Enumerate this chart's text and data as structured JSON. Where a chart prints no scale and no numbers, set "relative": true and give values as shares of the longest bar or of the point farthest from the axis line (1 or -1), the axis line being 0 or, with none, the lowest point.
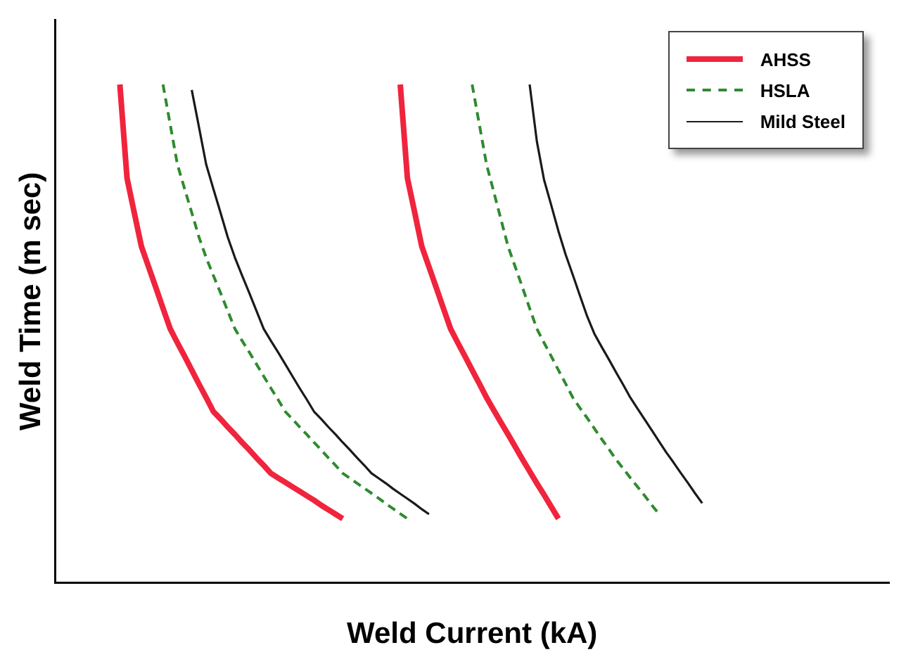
{
  "chart_data": {
    "type": "line",
    "relative": true,
    "xlabel": "Weld Current (kA)",
    "ylabel": "Weld Time (m sec)",
    "legend": "top right",
    "grid": false,
    "marker": "none",
    "categories": [
      null,
      null,
      null,
      null,
      null,
      null,
      null,
      null,
      null,
      null,
      null,
      null,
      null,
      null,
      null,
      null,
      null,
      null,
      null,
      null,
      null,
      null,
      null,
      null,
      null,
      null,
      null,
      null,
      null,
      null,
      null,
      null,
      null,
      null,
      null,
      null,
      null,
      null,
      null,
      null,
      null,
      null,
      null,
      null,
      null,
      null,
      null,
      null,
      null,
      null,
      null,
      null,
      null,
      null,
      null,
      null,
      null,
      null,
      null,
      null,
      null,
      null,
      null,
      null,
      null,
      null,
      null,
      null,
      null,
      null,
      null,
      null,
      null,
      null,
      null,
      null,
      null,
      null,
      null,
      null,
      null,
      null,
      null,
      null,
      null,
      null,
      null,
      null,
      null,
      null,
      null,
      null,
      null,
      null,
      null,
      null,
      null,
      null,
      null,
      null,
      null,
      null,
      null,
      null,
      null,
      null,
      null,
      null,
      null,
      null,
      null,
      null,
      null,
      null,
      null,
      null,
      null
    ],
    "series": [
      {
        "name": "AHSS",
        "color": "#f0243c",
        "line_style": "solid",
        "values": [
          null,
          null,
          null,
          null,
          null,
          null,
          null,
          null,
          null,
          1,
          0.812,
          0.743,
          0.675,
          0.634,
          0.593,
          0.551,
          0.51,
          0.482,
          0.455,
          0.427,
          0.399,
          0.372,
          0.344,
          0.329,
          0.313,
          0.298,
          0.282,
          0.267,
          0.251,
          0.236,
          0.22,
          0.211,
          0.202,
          0.193,
          0.184,
          0.175,
          0.166,
          0.156,
          0.147,
          0.138,
          0.129,
          null,
          null,
          null,
          null,
          null,
          null,
          null,
          null,
          null,
          null,
          null,
          null,
          null,
          null,
          null,
          null,
          null,
          null,
          null,
          null,
          null,
          null,
          null,
          null,
          null,
          null,
          null,
          null,
          null,
          null,
          null,
          null,
          null,
          null,
          null,
          null,
          null,
          null,
          null,
          null,
          null,
          null,
          null,
          null,
          null,
          null,
          null,
          null,
          null,
          null,
          null,
          null,
          null,
          null,
          null,
          null,
          null,
          null,
          null,
          null,
          null,
          null,
          null,
          null,
          null,
          null,
          null,
          null,
          null,
          null,
          null,
          null,
          null,
          null,
          null,
          null
        ]
      },
      {
        "name": "HSLA",
        "color": "#2e8b2e",
        "line_style": "dashed",
        "values": [
          null,
          null,
          null,
          null,
          null,
          null,
          null,
          null,
          null,
          null,
          null,
          null,
          null,
          null,
          null,
          1,
          0.92,
          0.84,
          0.791,
          0.743,
          0.694,
          0.653,
          0.617,
          0.582,
          0.546,
          0.51,
          0.486,
          0.463,
          0.439,
          0.415,
          0.391,
          0.368,
          0.344,
          0.329,
          0.313,
          0.298,
          0.282,
          0.267,
          0.251,
          0.236,
          0.22,
          0.21,
          0.2,
          0.19,
          0.18,
          0.17,
          0.159,
          0.149,
          0.139,
          0.129,
          null,
          null,
          null,
          null,
          null,
          null,
          null,
          null,
          null,
          null,
          null,
          null,
          null,
          null,
          null,
          null,
          null,
          null,
          null,
          null,
          null,
          null,
          null,
          null,
          null,
          null,
          null,
          null,
          null,
          null,
          null,
          null,
          null,
          null,
          null,
          null,
          null,
          null,
          null,
          null,
          null,
          null,
          null,
          null,
          null,
          null,
          null,
          null,
          null,
          null,
          null,
          null,
          null,
          null,
          null,
          null,
          null,
          null,
          null,
          null,
          null,
          null,
          null,
          null,
          null,
          null,
          null
        ]
      },
      {
        "name": "Mild Steel",
        "color": "#1a1a1a",
        "line_style": "solid",
        "values": [
          null,
          null,
          null,
          null,
          null,
          null,
          null,
          null,
          null,
          null,
          null,
          null,
          null,
          null,
          null,
          null,
          null,
          null,
          null,
          0.989,
          0.915,
          0.84,
          0.791,
          0.743,
          0.694,
          0.653,
          0.617,
          0.582,
          0.546,
          0.51,
          0.486,
          0.463,
          0.439,
          0.415,
          0.391,
          0.368,
          0.344,
          0.329,
          0.313,
          0.298,
          0.282,
          0.267,
          0.251,
          0.236,
          0.22,
          0.21,
          0.2,
          0.189,
          0.179,
          0.169,
          0.159,
          0.148,
          0.138,
          null,
          null,
          null,
          null,
          null,
          null,
          null,
          null,
          null,
          null,
          null,
          null,
          null,
          null,
          null,
          null,
          null,
          null,
          null,
          null,
          null,
          null,
          null,
          null,
          null,
          null,
          null,
          null,
          null,
          null,
          null,
          null,
          null,
          null,
          null,
          null,
          null,
          null,
          null,
          null,
          null,
          null,
          null,
          null,
          null,
          null,
          null,
          null,
          null,
          null,
          null,
          null,
          null,
          null,
          null,
          null,
          null,
          null,
          null,
          null,
          null,
          null,
          null,
          null
        ]
      },
      {
        "color": "#f0243c",
        "line_style": "solid",
        "values": [
          null,
          null,
          null,
          null,
          null,
          null,
          null,
          null,
          null,
          null,
          null,
          null,
          null,
          null,
          null,
          null,
          null,
          null,
          null,
          null,
          null,
          null,
          null,
          null,
          null,
          null,
          null,
          null,
          null,
          null,
          null,
          null,
          null,
          null,
          null,
          null,
          null,
          null,
          null,
          null,
          null,
          null,
          null,
          null,
          null,
          null,
          null,
          null,
          1,
          0.812,
          0.744,
          0.675,
          0.634,
          0.593,
          0.551,
          0.51,
          0.482,
          0.455,
          0.427,
          0.4,
          0.372,
          0.347,
          0.322,
          0.298,
          0.273,
          0.248,
          0.224,
          0.2,
          0.177,
          0.153,
          0.129,
          null,
          null,
          null,
          null,
          null,
          null,
          null,
          null,
          null,
          null,
          null,
          null,
          null,
          null,
          null,
          null,
          null,
          null,
          null,
          null,
          null,
          null,
          null,
          null,
          null,
          null,
          null,
          null,
          null,
          null,
          null,
          null,
          null,
          null,
          null,
          null,
          null,
          null,
          null,
          null,
          null,
          null,
          null,
          null,
          null,
          null
        ]
      },
      {
        "color": "#2e8b2e",
        "line_style": "dashed",
        "values": [
          null,
          null,
          null,
          null,
          null,
          null,
          null,
          null,
          null,
          null,
          null,
          null,
          null,
          null,
          null,
          null,
          null,
          null,
          null,
          null,
          null,
          null,
          null,
          null,
          null,
          null,
          null,
          null,
          null,
          null,
          null,
          null,
          null,
          null,
          null,
          null,
          null,
          null,
          null,
          null,
          null,
          null,
          null,
          null,
          null,
          null,
          null,
          null,
          null,
          null,
          null,
          null,
          null,
          null,
          null,
          null,
          null,
          null,
          1,
          0.92,
          0.84,
          0.785,
          0.73,
          0.675,
          0.634,
          0.593,
          0.551,
          0.51,
          0.482,
          0.455,
          0.427,
          0.4,
          0.372,
          0.351,
          0.331,
          0.31,
          0.289,
          0.269,
          0.248,
          0.23,
          0.211,
          0.193,
          0.175,
          0.156,
          0.138,
          null,
          null,
          null,
          null,
          null,
          null,
          null,
          null,
          null,
          null,
          null,
          null,
          null,
          null,
          null,
          null,
          null,
          null,
          null,
          null,
          null,
          null,
          null,
          null,
          null,
          null,
          null,
          null,
          null,
          null,
          null,
          null
        ]
      },
      {
        "color": "#1a1a1a",
        "line_style": "solid",
        "values": [
          null,
          null,
          null,
          null,
          null,
          null,
          null,
          null,
          null,
          null,
          null,
          null,
          null,
          null,
          null,
          null,
          null,
          null,
          null,
          null,
          null,
          null,
          null,
          null,
          null,
          null,
          null,
          null,
          null,
          null,
          null,
          null,
          null,
          null,
          null,
          null,
          null,
          null,
          null,
          null,
          null,
          null,
          null,
          null,
          null,
          null,
          null,
          null,
          null,
          null,
          null,
          null,
          null,
          null,
          null,
          null,
          null,
          null,
          null,
          null,
          null,
          null,
          null,
          null,
          null,
          null,
          1,
          0.886,
          0.809,
          0.758,
          0.706,
          0.659,
          0.618,
          0.576,
          0.535,
          0.5,
          0.474,
          0.449,
          0.423,
          0.398,
          0.372,
          0.35,
          0.328,
          0.306,
          0.284,
          0.262,
          0.242,
          0.221,
          0.201,
          0.18,
          0.16,
          null,
          null,
          null,
          null,
          null,
          null,
          null,
          null,
          null,
          null,
          null,
          null,
          null,
          null,
          null,
          null,
          null,
          null,
          null,
          null,
          null,
          null,
          null,
          null,
          null,
          null
        ]
      }
    ]
  }
}
